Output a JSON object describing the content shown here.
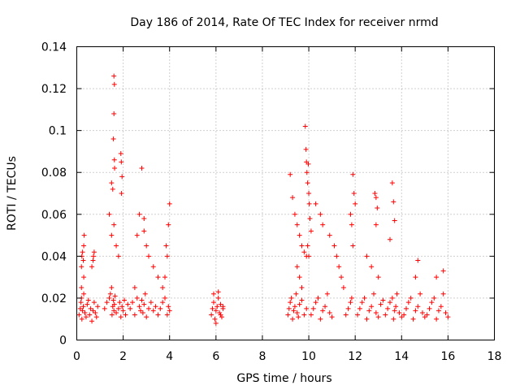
{
  "chart_data": {
    "type": "scatter",
    "title": "Day 186 of 2014, Rate Of TEC Index for receiver nrmd",
    "xlabel": "GPS time / hours",
    "ylabel": "ROTI / TECUs",
    "xlim": [
      0,
      18
    ],
    "ylim": [
      0,
      0.14
    ],
    "xticks": [
      0,
      2,
      4,
      6,
      8,
      10,
      12,
      14,
      16,
      18
    ],
    "yticks": [
      0,
      0.02,
      0.04,
      0.06,
      0.08,
      0.1,
      0.12,
      0.14
    ],
    "xtick_labels": [
      "0",
      "2",
      "4",
      "6",
      "8",
      "10",
      "12",
      "14",
      "16",
      "18"
    ],
    "ytick_labels": [
      "0",
      "0.02",
      "0.04",
      "0.06",
      "0.08",
      "0.1",
      "0.12",
      "0.14"
    ],
    "grid": true,
    "marker": "plus",
    "color": "#ff0000",
    "series": [
      {
        "name": "ROTI",
        "description": "Estimated point cloud: dense clusters 0-4 h, 5.8-6.3 h and 9.1-16 h, mostly 0.005-0.025 TECU with sparse spikes",
        "x": [
          0.1,
          0.15,
          0.18,
          0.2,
          0.22,
          0.25,
          0.28,
          0.3,
          0.35,
          0.4,
          0.45,
          0.5,
          0.55,
          0.6,
          0.65,
          0.7,
          0.75,
          0.8,
          0.85,
          0.9,
          0.2,
          0.22,
          0.25,
          0.28,
          0.3,
          0.32,
          0.2,
          0.3,
          0.65,
          0.7,
          0.72,
          0.75,
          1.2,
          1.3,
          1.4,
          1.45,
          1.5,
          1.52,
          1.55,
          1.58,
          1.6,
          1.62,
          1.65,
          1.7,
          1.8,
          1.85,
          1.9,
          1.95,
          2.0,
          2.05,
          2.1,
          2.2,
          1.6,
          1.62,
          1.6,
          1.58,
          1.62,
          1.63,
          1.5,
          1.55,
          1.4,
          1.6,
          1.5,
          1.7,
          1.8,
          1.9,
          1.92,
          1.95,
          1.93,
          2.3,
          2.4,
          2.5,
          2.6,
          2.7,
          2.75,
          2.8,
          2.85,
          2.9,
          2.95,
          3.0,
          3.1,
          3.2,
          3.3,
          3.4,
          3.5,
          2.8,
          2.7,
          2.9,
          2.6,
          3.0,
          3.1,
          3.3,
          3.5,
          2.5,
          2.9,
          3.6,
          3.7,
          3.8,
          3.9,
          3.95,
          4.0,
          3.8,
          3.9,
          3.95,
          4.0,
          3.7,
          3.85,
          5.8,
          5.85,
          5.9,
          5.95,
          6.0,
          6.05,
          6.1,
          6.15,
          6.2,
          6.25,
          6.3,
          5.9,
          6.0,
          6.1,
          6.2,
          6.3,
          9.1,
          9.15,
          9.2,
          9.25,
          9.3,
          9.35,
          9.4,
          9.45,
          9.5,
          9.55,
          9.6,
          9.7,
          9.8,
          9.9,
          9.2,
          9.3,
          9.4,
          9.5,
          9.6,
          9.7,
          9.8,
          9.9,
          9.5,
          9.6,
          9.7,
          9.85,
          9.88,
          9.9,
          9.92,
          9.95,
          9.98,
          10.0,
          10.02,
          10.05,
          10.1,
          9.95,
          10.0,
          10.1,
          10.2,
          10.3,
          10.4,
          10.5,
          10.6,
          10.7,
          10.8,
          10.9,
          11.0,
          10.3,
          10.5,
          10.6,
          10.9,
          11.1,
          11.2,
          11.3,
          11.4,
          11.5,
          11.6,
          11.7,
          11.8,
          11.85,
          11.9,
          11.95,
          12.0,
          11.8,
          11.85,
          11.9,
          12.1,
          12.2,
          12.3,
          12.4,
          12.5,
          12.6,
          12.7,
          12.8,
          12.9,
          13.0,
          13.1,
          13.2,
          12.85,
          12.9,
          12.95,
          12.9,
          12.5,
          12.7,
          13.0,
          13.3,
          13.4,
          13.5,
          13.6,
          13.65,
          13.7,
          13.75,
          13.8,
          13.9,
          14.0,
          13.6,
          13.65,
          13.7,
          13.5,
          14.1,
          14.2,
          14.3,
          14.4,
          14.5,
          14.6,
          14.7,
          14.8,
          14.9,
          15.0,
          14.7,
          14.6,
          15.1,
          15.2,
          15.3,
          15.4,
          15.5,
          15.6,
          15.7,
          15.8,
          15.9,
          16.0,
          15.5,
          15.8
        ],
        "y": [
          0.012,
          0.015,
          0.018,
          0.02,
          0.01,
          0.014,
          0.016,
          0.022,
          0.013,
          0.011,
          0.017,
          0.019,
          0.012,
          0.015,
          0.009,
          0.014,
          0.018,
          0.013,
          0.011,
          0.016,
          0.035,
          0.04,
          0.042,
          0.038,
          0.045,
          0.05,
          0.025,
          0.03,
          0.035,
          0.038,
          0.04,
          0.042,
          0.015,
          0.018,
          0.02,
          0.022,
          0.025,
          0.012,
          0.016,
          0.019,
          0.014,
          0.017,
          0.021,
          0.013,
          0.015,
          0.018,
          0.011,
          0.016,
          0.014,
          0.019,
          0.012,
          0.017,
          0.126,
          0.122,
          0.108,
          0.096,
          0.086,
          0.082,
          0.075,
          0.072,
          0.06,
          0.055,
          0.05,
          0.045,
          0.04,
          0.089,
          0.085,
          0.078,
          0.07,
          0.015,
          0.018,
          0.012,
          0.02,
          0.016,
          0.014,
          0.019,
          0.013,
          0.017,
          0.022,
          0.011,
          0.015,
          0.018,
          0.014,
          0.016,
          0.012,
          0.082,
          0.06,
          0.058,
          0.05,
          0.045,
          0.04,
          0.035,
          0.03,
          0.025,
          0.052,
          0.015,
          0.018,
          0.02,
          0.012,
          0.016,
          0.014,
          0.03,
          0.04,
          0.055,
          0.065,
          0.025,
          0.045,
          0.012,
          0.015,
          0.018,
          0.01,
          0.014,
          0.016,
          0.02,
          0.013,
          0.017,
          0.011,
          0.015,
          0.022,
          0.008,
          0.023,
          0.012,
          0.016,
          0.012,
          0.015,
          0.018,
          0.02,
          0.01,
          0.014,
          0.016,
          0.022,
          0.013,
          0.011,
          0.017,
          0.019,
          0.012,
          0.015,
          0.079,
          0.068,
          0.06,
          0.055,
          0.05,
          0.045,
          0.042,
          0.04,
          0.035,
          0.03,
          0.025,
          0.102,
          0.091,
          0.085,
          0.08,
          0.075,
          0.084,
          0.07,
          0.065,
          0.058,
          0.052,
          0.045,
          0.04,
          0.012,
          0.015,
          0.018,
          0.02,
          0.01,
          0.014,
          0.016,
          0.022,
          0.013,
          0.011,
          0.065,
          0.06,
          0.055,
          0.05,
          0.045,
          0.04,
          0.035,
          0.03,
          0.025,
          0.012,
          0.015,
          0.018,
          0.02,
          0.079,
          0.07,
          0.065,
          0.06,
          0.055,
          0.045,
          0.012,
          0.015,
          0.018,
          0.02,
          0.01,
          0.014,
          0.016,
          0.022,
          0.013,
          0.011,
          0.017,
          0.019,
          0.07,
          0.068,
          0.063,
          0.055,
          0.04,
          0.035,
          0.03,
          0.012,
          0.015,
          0.018,
          0.02,
          0.01,
          0.014,
          0.016,
          0.022,
          0.013,
          0.011,
          0.075,
          0.066,
          0.057,
          0.048,
          0.012,
          0.015,
          0.018,
          0.02,
          0.01,
          0.014,
          0.016,
          0.022,
          0.013,
          0.011,
          0.038,
          0.03,
          0.012,
          0.015,
          0.018,
          0.02,
          0.01,
          0.014,
          0.016,
          0.022,
          0.013,
          0.011,
          0.03,
          0.033
        ]
      }
    ]
  }
}
